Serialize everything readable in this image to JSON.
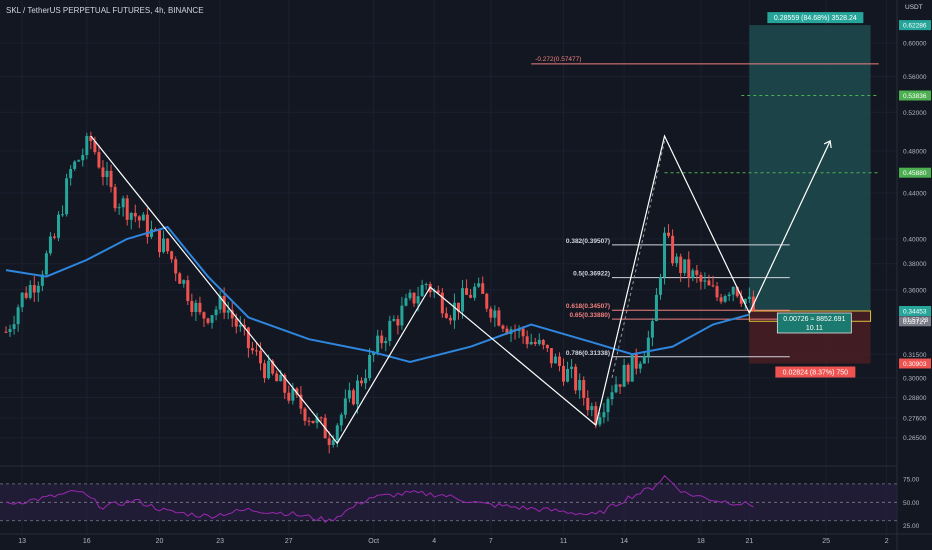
{
  "title": "SKL / TetherUS PERPETUAL FUTURES, 4h, BINANCE",
  "colors": {
    "background": "#131722",
    "up": "#26a69a",
    "down": "#ef5350",
    "ma": "#2e86de",
    "rsi": "#9c27b0",
    "rsi_band": "#2a1f45",
    "text": "#d1d4dc",
    "profit_zone": "#1f4b4e",
    "loss_zone": "#4a1f23",
    "target": "#4caf50",
    "fib": "#f08080"
  },
  "chart_data": {
    "type": "candlestick",
    "price_axis": {
      "unit": "USDT",
      "scale": "log",
      "range": [
        0.252,
        0.64
      ],
      "ticks": [
        "0.60000",
        "0.56000",
        "0.52000",
        "0.48000",
        "0.44000",
        "0.40000",
        "0.38000",
        "0.36000",
        "0.31500",
        "0.30000",
        "0.28800",
        "0.27600",
        "0.26500"
      ]
    },
    "time_axis": {
      "ticks": [
        "13",
        "16",
        "20",
        "23",
        "27",
        "Oct",
        "4",
        "7",
        "11",
        "14",
        "18",
        "21",
        "25",
        "2"
      ]
    },
    "price_path": [
      {
        "bar": 0,
        "price": 0.33
      },
      {
        "bar": 4,
        "price": 0.355
      },
      {
        "bar": 8,
        "price": 0.37
      },
      {
        "bar": 12,
        "price": 0.4
      },
      {
        "bar": 16,
        "price": 0.46
      },
      {
        "bar": 21,
        "price": 0.49
      },
      {
        "bar": 26,
        "price": 0.44
      },
      {
        "bar": 32,
        "price": 0.42
      },
      {
        "bar": 40,
        "price": 0.39
      },
      {
        "bar": 48,
        "price": 0.34
      },
      {
        "bar": 54,
        "price": 0.35
      },
      {
        "bar": 60,
        "price": 0.32
      },
      {
        "bar": 66,
        "price": 0.3
      },
      {
        "bar": 72,
        "price": 0.285
      },
      {
        "bar": 80,
        "price": 0.266
      },
      {
        "bar": 86,
        "price": 0.29
      },
      {
        "bar": 94,
        "price": 0.33
      },
      {
        "bar": 104,
        "price": 0.365
      },
      {
        "bar": 110,
        "price": 0.345
      },
      {
        "bar": 116,
        "price": 0.36
      },
      {
        "bar": 124,
        "price": 0.335
      },
      {
        "bar": 132,
        "price": 0.32
      },
      {
        "bar": 140,
        "price": 0.3
      },
      {
        "bar": 146,
        "price": 0.278
      },
      {
        "bar": 150,
        "price": 0.295
      },
      {
        "bar": 156,
        "price": 0.31
      },
      {
        "bar": 160,
        "price": 0.33
      },
      {
        "bar": 163,
        "price": 0.4
      },
      {
        "bar": 166,
        "price": 0.38
      },
      {
        "bar": 170,
        "price": 0.37
      },
      {
        "bar": 176,
        "price": 0.355
      },
      {
        "bar": 180,
        "price": 0.365
      },
      {
        "bar": 185,
        "price": 0.345
      }
    ],
    "moving_average": [
      {
        "bar": 0,
        "price": 0.375
      },
      {
        "bar": 10,
        "price": 0.37
      },
      {
        "bar": 20,
        "price": 0.383
      },
      {
        "bar": 30,
        "price": 0.4
      },
      {
        "bar": 40,
        "price": 0.41
      },
      {
        "bar": 50,
        "price": 0.37
      },
      {
        "bar": 60,
        "price": 0.34
      },
      {
        "bar": 75,
        "price": 0.325
      },
      {
        "bar": 90,
        "price": 0.317
      },
      {
        "bar": 100,
        "price": 0.31
      },
      {
        "bar": 115,
        "price": 0.32
      },
      {
        "bar": 130,
        "price": 0.335
      },
      {
        "bar": 145,
        "price": 0.323
      },
      {
        "bar": 155,
        "price": 0.315
      },
      {
        "bar": 165,
        "price": 0.32
      },
      {
        "bar": 175,
        "price": 0.335
      },
      {
        "bar": 184,
        "price": 0.342
      }
    ],
    "pattern_lines": [
      [
        {
          "bar": 21,
          "price": 0.495
        },
        {
          "bar": 82,
          "price": 0.262
        },
        {
          "bar": 105,
          "price": 0.362
        },
        {
          "bar": 146,
          "price": 0.272
        },
        {
          "bar": 163,
          "price": 0.495
        },
        {
          "bar": 184,
          "price": 0.343
        }
      ],
      [
        {
          "bar": 184,
          "price": 0.343
        },
        {
          "bar": 204,
          "price": 0.49
        }
      ]
    ],
    "dashed_projection": [
      {
        "bar": 150,
        "price": 0.3
      },
      {
        "bar": 163,
        "price": 0.49
      }
    ],
    "fibonacci": {
      "from_bar": 150,
      "to_bar": 194,
      "levels": [
        {
          "label": "0.382(0.39507)",
          "price": 0.39507,
          "color": "#d1d4dc"
        },
        {
          "label": "0.5(0.36922)",
          "price": 0.36922,
          "color": "#d1d4dc"
        },
        {
          "label": "0.618(0.34507)",
          "price": 0.34507,
          "color": "#f08080"
        },
        {
          "label": "0.65(0.33880)",
          "price": 0.3388,
          "color": "#f08080"
        },
        {
          "label": "0.786(0.31338)",
          "price": 0.31338,
          "color": "#d1d4dc"
        }
      ]
    },
    "extension": {
      "label": "-0.272(0.57477)",
      "price": 0.57477,
      "from_bar": 130,
      "to_bar": 216
    },
    "target_lines": [
      {
        "price": 0.53836,
        "from_bar": 182,
        "to_bar": 216
      },
      {
        "price": 0.4588,
        "from_bar": 163,
        "to_bar": 216
      }
    ],
    "position": {
      "from_bar": 184,
      "to_bar": 214,
      "entry": 0.34453,
      "stop": 0.30903,
      "target": 0.62286,
      "entry_box_bottom": 0.33727,
      "target_label": "0.28559 (84.68%) 3528.24",
      "stop_label": "0.02824 (8.37%) 750",
      "info_lines": [
        "0.00726 ≈ 8852.691",
        "10.11"
      ]
    },
    "price_badges": [
      {
        "text": "0.62286",
        "price": 0.62286,
        "color": "#26a69a"
      },
      {
        "text": "0.53836",
        "price": 0.53836,
        "color": "#4caf50"
      },
      {
        "text": "0.45880",
        "price": 0.4588,
        "color": "#4caf50"
      },
      {
        "text": "0.34453",
        "price": 0.34453,
        "color": "#26a69a"
      },
      {
        "text": "0.33727",
        "price": 0.33727,
        "color": "#787b86"
      },
      {
        "text": "0.30903",
        "price": 0.30903,
        "color": "#ef5350"
      }
    ],
    "countdown": "01:57:23",
    "rsi": {
      "ticks": [
        "75.00",
        "50.00",
        "25.00"
      ],
      "levels": [
        70,
        50,
        30
      ],
      "values": [
        {
          "bar": 0,
          "v": 48
        },
        {
          "bar": 10,
          "v": 55
        },
        {
          "bar": 18,
          "v": 62
        },
        {
          "bar": 24,
          "v": 45
        },
        {
          "bar": 32,
          "v": 52
        },
        {
          "bar": 40,
          "v": 40
        },
        {
          "bar": 50,
          "v": 35
        },
        {
          "bar": 60,
          "v": 42
        },
        {
          "bar": 70,
          "v": 38
        },
        {
          "bar": 80,
          "v": 30
        },
        {
          "bar": 90,
          "v": 55
        },
        {
          "bar": 100,
          "v": 60
        },
        {
          "bar": 108,
          "v": 58
        },
        {
          "bar": 118,
          "v": 48
        },
        {
          "bar": 128,
          "v": 44
        },
        {
          "bar": 138,
          "v": 40
        },
        {
          "bar": 146,
          "v": 36
        },
        {
          "bar": 154,
          "v": 55
        },
        {
          "bar": 160,
          "v": 66
        },
        {
          "bar": 163,
          "v": 78
        },
        {
          "bar": 168,
          "v": 60
        },
        {
          "bar": 176,
          "v": 52
        },
        {
          "bar": 185,
          "v": 47
        }
      ]
    }
  }
}
